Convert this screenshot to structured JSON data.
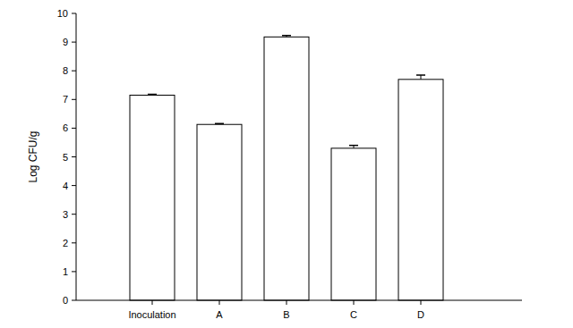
{
  "chart_data": {
    "type": "bar",
    "y_label": "Log CFU/g",
    "categories": [
      "Inoculation",
      "A",
      "B",
      "C",
      "D"
    ],
    "values": [
      7.15,
      6.13,
      9.18,
      5.3,
      7.7
    ],
    "errors": [
      0.03,
      0.03,
      0.05,
      0.1,
      0.15
    ],
    "color": "#ffffff",
    "ylim": [
      0,
      10
    ],
    "yticks": [
      0,
      1,
      2,
      3,
      4,
      5,
      6,
      7,
      8,
      9,
      10
    ],
    "grid": false
  }
}
